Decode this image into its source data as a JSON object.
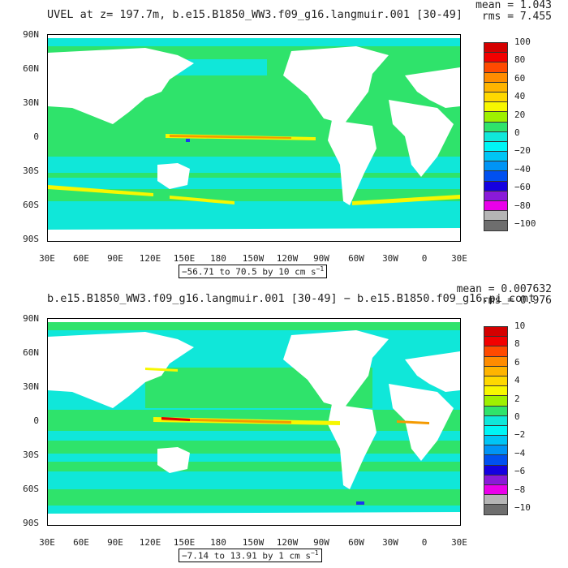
{
  "panels": [
    {
      "title": "UVEL at z= 197.7m, b.e15.B1850_WW3.f09_g16.langmuir.001 [30-49]",
      "stats_mean": "mean = 1.043",
      "stats_rms": "rms = 7.455",
      "range_label": "−56.71 to 70.5 by 10 cm s",
      "range_sup": "−1",
      "colorbar_labels": [
        "100",
        "80",
        "60",
        "40",
        "20",
        "0",
        "−20",
        "−40",
        "−60",
        "−80",
        "−100"
      ]
    },
    {
      "title": "b.e15.B1850_WW3.f09_g16.langmuir.001 [30-49] − b.e15.B1850.f09_g16.pi_cont",
      "stats_mean": "mean = 0.007632",
      "stats_rms": "rms = 0.976",
      "range_label": "−7.14 to 13.91 by 1 cm s",
      "range_sup": "−1",
      "colorbar_labels": [
        "10",
        "8",
        "6",
        "4",
        "2",
        "0",
        "−2",
        "−4",
        "−6",
        "−8",
        "−10"
      ]
    }
  ],
  "y_ticks": [
    "90N",
    "60N",
    "30N",
    "0",
    "30S",
    "60S",
    "90S"
  ],
  "x_ticks": [
    "30E",
    "60E",
    "90E",
    "120E",
    "150E",
    "180",
    "150W",
    "120W",
    "90W",
    "60W",
    "30W",
    "0",
    "30E"
  ],
  "colors": {
    "ocean": "#2fe36b",
    "ocean_alt": "#10e7d9",
    "land": "#ffffff",
    "jet_yellow": "#f7f700",
    "jet_orange": "#f49a00",
    "jet_red": "#e10000",
    "jet_blue": "#1b35f2"
  },
  "colorbar_colors": [
    "#d40000",
    "#f20000",
    "#ff4a00",
    "#ff8c00",
    "#ffb400",
    "#ffd800",
    "#f7f700",
    "#9ef000",
    "#2fe36b",
    "#10e7d9",
    "#00f5f5",
    "#00c5f5",
    "#0094f5",
    "#0050f0",
    "#1500e0",
    "#8a1ad8",
    "#ea00ea",
    "#b5b5b5",
    "#6e6e6e"
  ]
}
